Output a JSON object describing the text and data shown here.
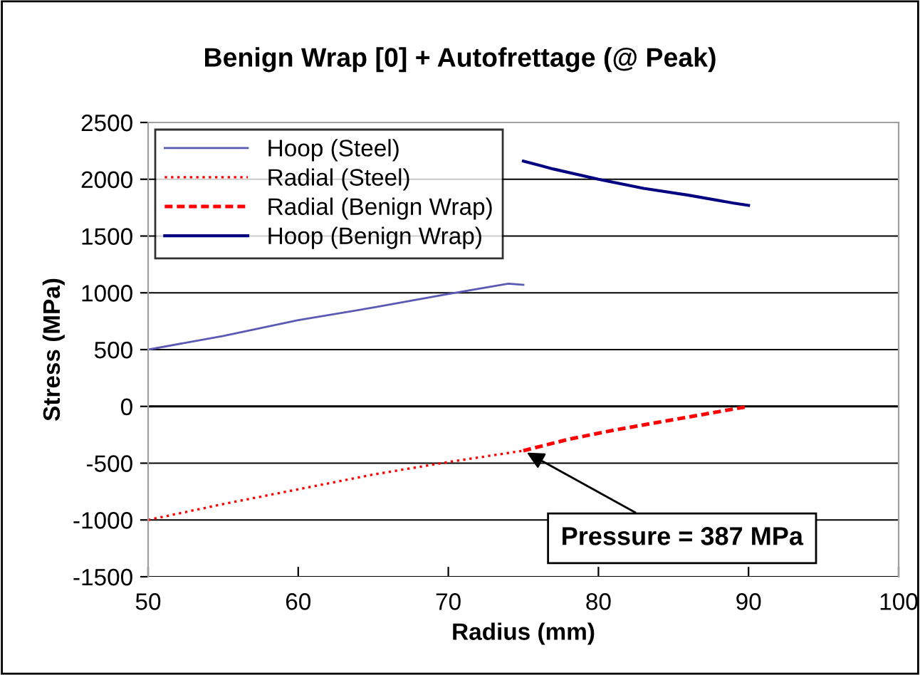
{
  "chart_data": {
    "type": "line",
    "title": "Benign Wrap [0] + Autofrettage (@ Peak)",
    "xlabel": "Radius (mm)",
    "ylabel": "Stress (MPa)",
    "xlim": [
      50,
      100
    ],
    "xticks": [
      50,
      60,
      70,
      80,
      90,
      100
    ],
    "ylim": [
      -1500,
      2500
    ],
    "yticks": [
      -1500,
      -1000,
      -500,
      0,
      500,
      1000,
      1500,
      2000,
      2500
    ],
    "grid": "y",
    "legend": "top left",
    "marker": "none",
    "annotations": [
      {
        "text": "Pressure = 387 MPa",
        "x": 75,
        "y": -390
      }
    ],
    "series": [
      {
        "name": "Hoop (Steel)",
        "color": "#5a5ab4",
        "line_style": "solid",
        "x": [
          50,
          55,
          60,
          65,
          70,
          74,
          75
        ],
        "values": [
          500,
          620,
          760,
          870,
          990,
          1080,
          1070
        ]
      },
      {
        "name": "Radial (Steel)",
        "color": "#ff0000",
        "line_style": "dotted",
        "x": [
          50,
          55,
          60,
          65,
          70,
          75
        ],
        "values": [
          -1000,
          -860,
          -730,
          -600,
          -490,
          -390
        ]
      },
      {
        "name": "Radial (Benign Wrap)",
        "color": "#ff0000",
        "line_style": "dashed",
        "x": [
          75,
          78,
          81,
          84,
          87,
          90
        ],
        "values": [
          -390,
          -290,
          -210,
          -140,
          -70,
          0
        ]
      },
      {
        "name": "Hoop (Benign Wrap)",
        "color": "#000080",
        "line_style": "solid",
        "x": [
          75,
          77,
          80,
          83,
          86,
          89,
          90
        ],
        "values": [
          2160,
          2090,
          2000,
          1920,
          1860,
          1790,
          1770
        ]
      }
    ]
  }
}
